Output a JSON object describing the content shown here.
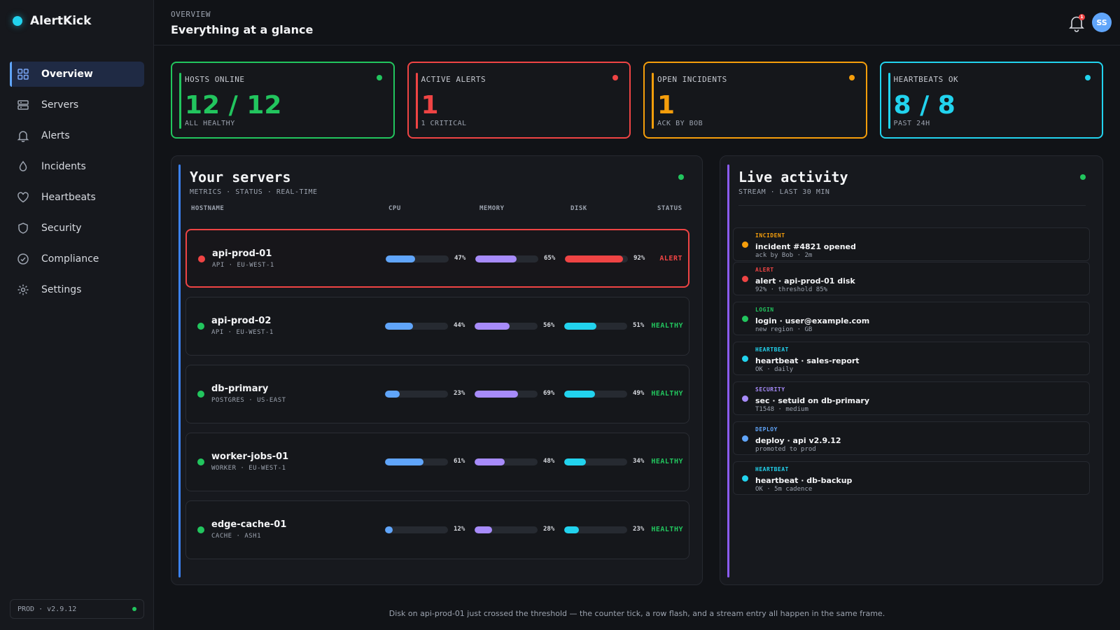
{
  "app": {
    "name": "AlertKick"
  },
  "sidebar": {
    "items": [
      {
        "label": "Overview",
        "icon": "grid-icon",
        "active": true
      },
      {
        "label": "Servers",
        "icon": "server-icon",
        "active": false
      },
      {
        "label": "Alerts",
        "icon": "bell-icon",
        "active": false
      },
      {
        "label": "Incidents",
        "icon": "flame-icon",
        "active": false
      },
      {
        "label": "Heartbeats",
        "icon": "heart-icon",
        "active": false
      },
      {
        "label": "Security",
        "icon": "shield-icon",
        "active": false
      },
      {
        "label": "Compliance",
        "icon": "check-circle-icon",
        "active": false
      },
      {
        "label": "Settings",
        "icon": "gear-icon",
        "active": false
      }
    ],
    "env": "PROD · v2.9.12"
  },
  "header": {
    "crumb": "OVERVIEW",
    "title": "Everything at a glance",
    "notifications": "1",
    "avatar": "SS"
  },
  "stats": [
    {
      "label": "HOSTS ONLINE",
      "value": "12 / 12",
      "sub": "ALL HEALTHY",
      "color": "#22c55e"
    },
    {
      "label": "ACTIVE ALERTS",
      "value": "1",
      "sub": "1 CRITICAL",
      "color": "#ef4444"
    },
    {
      "label": "OPEN INCIDENTS",
      "value": "1",
      "sub": "ACK BY BOB",
      "color": "#f59e0b"
    },
    {
      "label": "HEARTBEATS OK",
      "value": "8 / 8",
      "sub": "PAST 24H",
      "color": "#22d3ee"
    }
  ],
  "servers": {
    "title": "Your servers",
    "subtitle": "METRICS · STATUS · REAL-TIME",
    "columns": {
      "hostname": "HOSTNAME",
      "cpu": "CPU",
      "memory": "MEMORY",
      "disk": "DISK",
      "status": "STATUS"
    },
    "rows": [
      {
        "host": "api-prod-01",
        "meta": "API · EU-WEST-1",
        "cpu": 47,
        "cpu_label": "47%",
        "mem": 65,
        "mem_label": "65%",
        "disk": 92,
        "disk_label": "92%",
        "status": "ALERT",
        "state": "alert"
      },
      {
        "host": "api-prod-02",
        "meta": "API · EU-WEST-1",
        "cpu": 44,
        "cpu_label": "44%",
        "mem": 56,
        "mem_label": "56%",
        "disk": 51,
        "disk_label": "51%",
        "status": "HEALTHY",
        "state": "ok"
      },
      {
        "host": "db-primary",
        "meta": "POSTGRES · US-EAST",
        "cpu": 23,
        "cpu_label": "23%",
        "mem": 69,
        "mem_label": "69%",
        "disk": 49,
        "disk_label": "49%",
        "status": "HEALTHY",
        "state": "ok"
      },
      {
        "host": "worker-jobs-01",
        "meta": "WORKER · EU-WEST-1",
        "cpu": 61,
        "cpu_label": "61%",
        "mem": 48,
        "mem_label": "48%",
        "disk": 34,
        "disk_label": "34%",
        "status": "HEALTHY",
        "state": "ok"
      },
      {
        "host": "edge-cache-01",
        "meta": "CACHE · ASH1",
        "cpu": 12,
        "cpu_label": "12%",
        "mem": 28,
        "mem_label": "28%",
        "disk": 23,
        "disk_label": "23%",
        "status": "HEALTHY",
        "state": "ok"
      }
    ]
  },
  "activity": {
    "title": "Live activity",
    "subtitle": "STREAM · LAST 30 MIN",
    "events": [
      {
        "type": "INCIDENT",
        "title": "incident #4821 opened",
        "desc": "ack by Bob · 2m",
        "color": "#f59e0b"
      },
      {
        "type": "ALERT",
        "title": "alert · api-prod-01 disk",
        "desc": "92% · threshold 85%",
        "color": "#ef4444"
      },
      {
        "type": "LOGIN",
        "title": "login · user@example.com",
        "desc": "new region · GB",
        "color": "#22c55e"
      },
      {
        "type": "HEARTBEAT",
        "title": "heartbeat · sales-report",
        "desc": "OK · daily",
        "color": "#22d3ee"
      },
      {
        "type": "SECURITY",
        "title": "sec · setuid on db-primary",
        "desc": "T1548 · medium",
        "color": "#a78bfa"
      },
      {
        "type": "DEPLOY",
        "title": "deploy · api v2.9.12",
        "desc": "promoted to prod",
        "color": "#60a5fa"
      },
      {
        "type": "HEARTBEAT",
        "title": "heartbeat · db-backup",
        "desc": "OK · 5m cadence",
        "color": "#22d3ee"
      }
    ]
  },
  "footnote": "Disk on api-prod-01 just crossed the threshold — the counter tick, a row flash, and a stream entry all happen in the same frame.",
  "colors": {
    "cpu": "#60a5fa",
    "memory": "#a78bfa",
    "disk": "#22d3ee",
    "disk_alert": "#ef4444",
    "ok": "#22c55e",
    "alert": "#ef4444"
  }
}
